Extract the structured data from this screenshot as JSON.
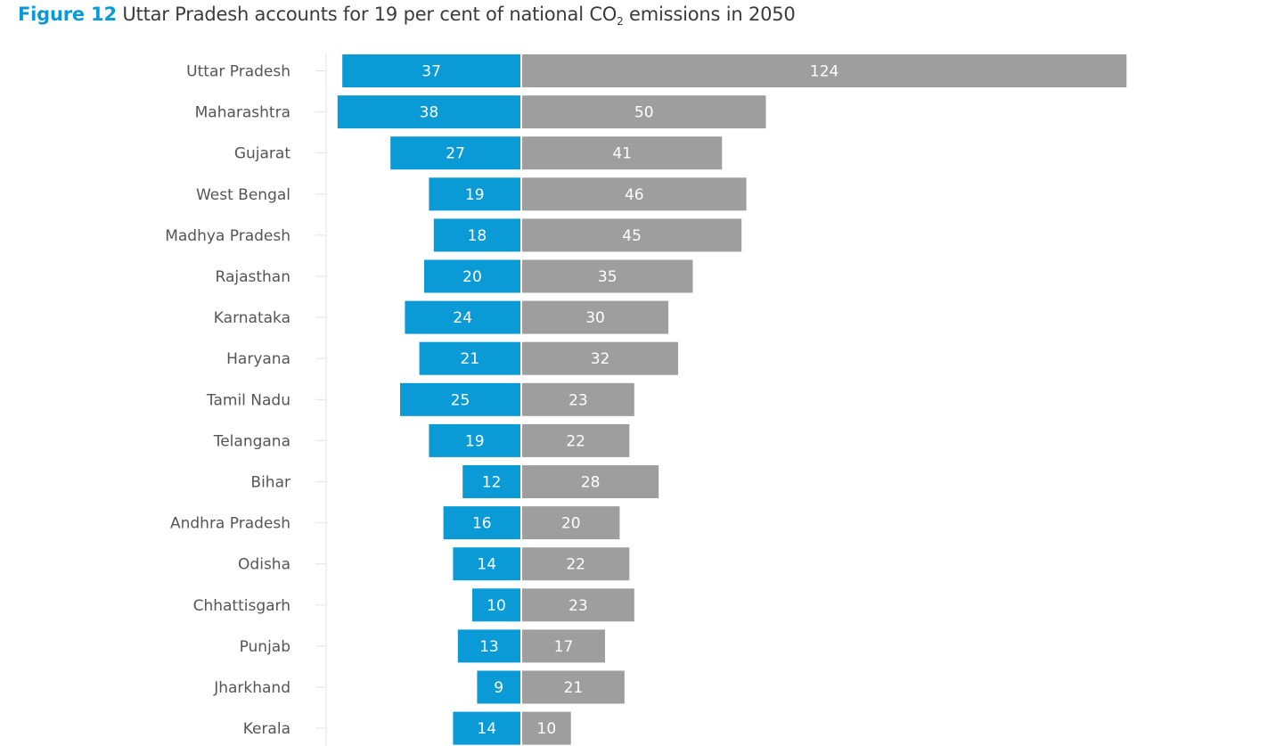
{
  "title": {
    "figure_label": "Figure 12",
    "text_before_sub": "Uttar Pradesh accounts for 19 per cent of national CO",
    "subscript": "2",
    "text_after_sub": " emissions in 2050"
  },
  "colors": {
    "left_series": "#0a9bd7",
    "right_series": "#9e9e9e",
    "figure_label": "#0a9bd7",
    "axis": "#d9d9d9",
    "category_text": "#555555"
  },
  "chart_data": {
    "type": "bar",
    "orientation": "horizontal-diverging",
    "categories": [
      "Uttar Pradesh",
      "Maharashtra",
      "Gujarat",
      "West Bengal",
      "Madhya Pradesh",
      "Rajasthan",
      "Karnataka",
      "Haryana",
      "Tamil Nadu",
      "Telangana",
      "Bihar",
      "Andhra Pradesh",
      "Odisha",
      "Chhattisgarh",
      "Punjab",
      "Jharkhand",
      "Kerala"
    ],
    "series": [
      {
        "values": [
          37,
          38,
          27,
          19,
          18,
          20,
          24,
          21,
          25,
          19,
          12,
          16,
          14,
          10,
          13,
          9,
          14
        ],
        "direction": "left"
      },
      {
        "values": [
          124,
          50,
          41,
          46,
          45,
          35,
          30,
          32,
          23,
          22,
          28,
          20,
          22,
          23,
          17,
          21,
          10
        ],
        "direction": "right"
      }
    ],
    "legend": "none",
    "grid": false
  }
}
